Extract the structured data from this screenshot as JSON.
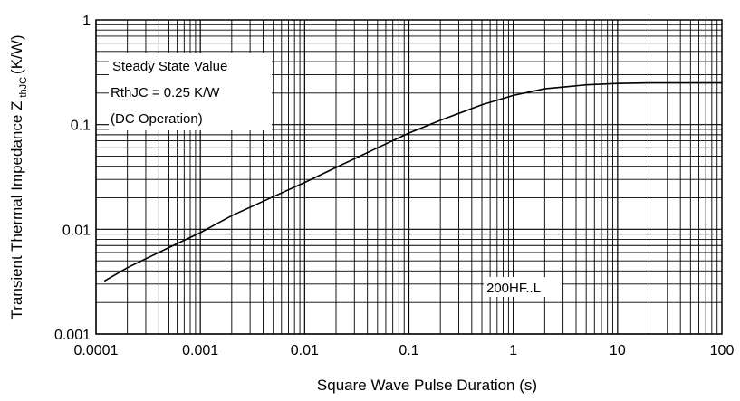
{
  "chart_data": {
    "type": "line",
    "xscale": "log",
    "yscale": "log",
    "xlim": [
      0.0001,
      100
    ],
    "ylim": [
      0.001,
      1
    ],
    "grid": true,
    "x_ticks": [
      "0.0001",
      "0.001",
      "0.01",
      "0.1",
      "1",
      "10",
      "100"
    ],
    "y_ticks": [
      "1",
      "0.1",
      "0.01",
      "0.001"
    ],
    "xlabel": "Square Wave Pulse Duration (s)",
    "ylabel_main": "Transient Thermal Impedance Z",
    "ylabel_sub": "thJC",
    "ylabel_unit": "(K/W)",
    "annotation_lines": [
      "Steady State Value",
      "RthJC = 0.25 K/W",
      "(DC Operation)"
    ],
    "device_label": "200HF..L",
    "series": [
      {
        "x": [
          0.00012,
          0.0002,
          0.0005,
          0.001,
          0.002,
          0.005,
          0.01,
          0.02,
          0.05,
          0.1,
          0.2,
          0.5,
          1,
          2,
          5,
          10,
          20,
          50,
          100
        ],
        "y": [
          0.0032,
          0.0043,
          0.0067,
          0.0093,
          0.0135,
          0.0205,
          0.028,
          0.039,
          0.06,
          0.083,
          0.11,
          0.155,
          0.19,
          0.22,
          0.24,
          0.247,
          0.25,
          0.25,
          0.25
        ]
      }
    ]
  }
}
